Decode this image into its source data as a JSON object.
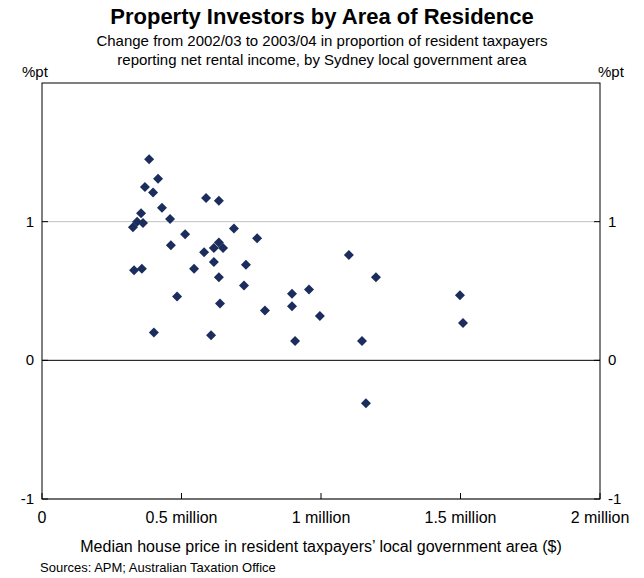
{
  "chart_data": {
    "type": "scatter",
    "title": "Property Investors by Area of Residence",
    "subtitle": [
      "Change from 2002/03 to 2003/04 in proportion of resident taxpayers",
      "reporting net rental income, by Sydney local government area"
    ],
    "y_label": "%pt",
    "x_label": "Median house price in resident taxpayers’ local government area ($)",
    "source": "Sources: APM; Australian Taxation Office",
    "x": [
      0.384,
      0.416,
      0.369,
      0.398,
      0.588,
      0.634,
      0.355,
      0.43,
      0.341,
      0.326,
      0.362,
      0.459,
      0.688,
      0.513,
      0.771,
      0.462,
      0.634,
      0.649,
      0.616,
      0.581,
      0.616,
      0.731,
      1.1,
      0.33,
      0.358,
      0.545,
      0.634,
      1.197,
      0.724,
      0.896,
      0.484,
      0.957,
      1.498,
      0.638,
      0.896,
      0.799,
      0.996,
      1.509,
      0.401,
      0.606,
      0.907,
      1.147,
      1.161
    ],
    "values": [
      1.45,
      1.31,
      1.25,
      1.21,
      1.17,
      1.15,
      1.06,
      1.1,
      1.0,
      0.96,
      0.99,
      1.02,
      0.95,
      0.91,
      0.88,
      0.83,
      0.85,
      0.81,
      0.81,
      0.78,
      0.71,
      0.69,
      0.76,
      0.65,
      0.66,
      0.66,
      0.6,
      0.6,
      0.54,
      0.48,
      0.46,
      0.51,
      0.47,
      0.41,
      0.39,
      0.36,
      0.32,
      0.27,
      0.2,
      0.18,
      0.14,
      0.14,
      -0.31
    ],
    "color": "#1b2d5c",
    "marker": "diamond",
    "xlim": [
      0,
      2
    ],
    "xticks": [
      0,
      {
        "value": 0.5,
        "label": "0.5 million"
      },
      {
        "value": 1,
        "label": "1 million"
      },
      {
        "value": 1.5,
        "label": "1.5 million"
      },
      {
        "value": 2,
        "label": "2 million"
      }
    ],
    "ylim": [
      -1,
      2
    ],
    "yticks": [
      -1,
      0,
      1
    ],
    "grid": true
  }
}
